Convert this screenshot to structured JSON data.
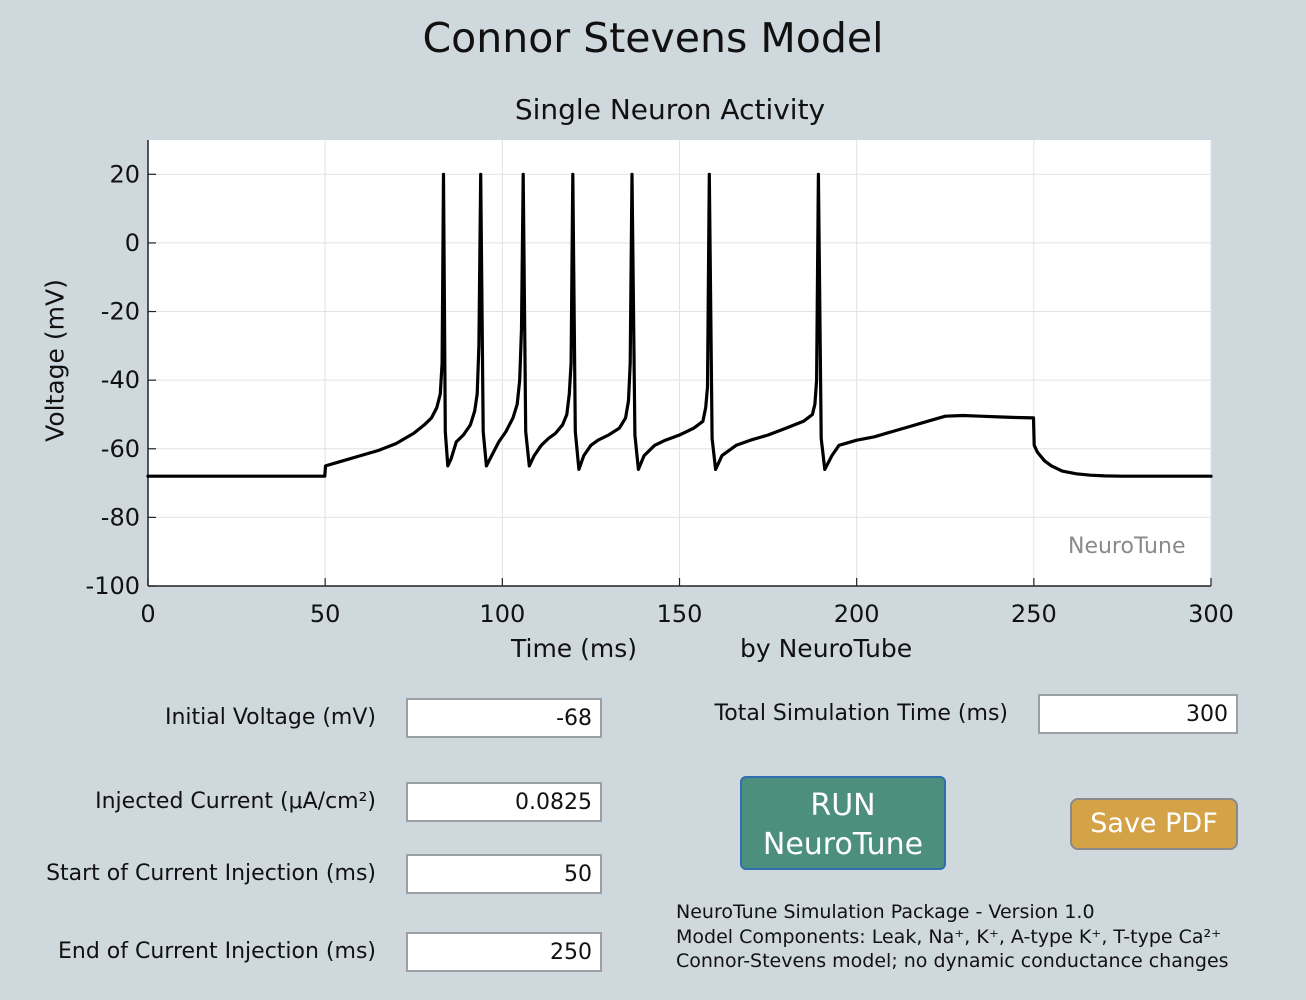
{
  "app": {
    "title": "Connor Stevens Model",
    "chart_title": "Single Neuron Activity",
    "watermark": "NeuroTune",
    "credit": "by NeuroTube"
  },
  "chart_data": {
    "type": "line",
    "title": "Single Neuron Activity",
    "xlabel": "Time (ms)",
    "ylabel": "Voltage (mV)",
    "xlim": [
      0,
      300
    ],
    "ylim": [
      -100,
      30
    ],
    "xticks": [
      0,
      50,
      100,
      150,
      200,
      250,
      300
    ],
    "yticks": [
      -100,
      -80,
      -60,
      -40,
      -20,
      0,
      20
    ],
    "grid": true,
    "line_color": "#000000",
    "series": [
      {
        "x": [
          0,
          49.9,
          50.1,
          55,
          60,
          65,
          70,
          75,
          78,
          80,
          81.5,
          82.5,
          83,
          83.4,
          83.9,
          84.6,
          85.5,
          87,
          89,
          91,
          92.2,
          92.9,
          93.4,
          93.9,
          94.6,
          95.5,
          97,
          99,
          101,
          103,
          104.2,
          104.9,
          105.4,
          105.9,
          106.6,
          107.6,
          109,
          111,
          113,
          115,
          117,
          118.2,
          118.9,
          119.4,
          119.9,
          120.6,
          121.6,
          123,
          125,
          127,
          130,
          133,
          134.8,
          135.6,
          136.1,
          136.6,
          137.4,
          138.4,
          140,
          143,
          146,
          150,
          154,
          156.6,
          157.4,
          157.9,
          158.4,
          159.2,
          160.2,
          162,
          166,
          170,
          175,
          180,
          185,
          187.5,
          188.2,
          188.7,
          189.2,
          190,
          191,
          193,
          195,
          200,
          205,
          210,
          215,
          220,
          225,
          230,
          235,
          240,
          245,
          249.9,
          250.1,
          251,
          253,
          255,
          258,
          262,
          266,
          270,
          275,
          280,
          290,
          300
        ],
        "y": [
          -68,
          -68,
          -65,
          -63.5,
          -62,
          -60.5,
          -58.5,
          -55.5,
          -53,
          -51,
          -48,
          -44,
          -35,
          20,
          -55,
          -65,
          -63,
          -58,
          -56,
          -53,
          -49,
          -44,
          -30,
          20,
          -55,
          -65,
          -62,
          -58,
          -55,
          -51,
          -47,
          -40,
          -25,
          20,
          -55,
          -65,
          -62,
          -59,
          -57,
          -55.5,
          -53,
          -50,
          -44,
          -35,
          20,
          -55,
          -66,
          -62,
          -59,
          -57.5,
          -56,
          -54,
          -51,
          -46,
          -35,
          20,
          -56,
          -66,
          -62,
          -59,
          -57.5,
          -56,
          -54,
          -52,
          -48,
          -42,
          20,
          -57,
          -66,
          -62,
          -59,
          -57.5,
          -56,
          -54,
          -52,
          -50,
          -47,
          -40,
          20,
          -57,
          -66,
          -62,
          -59,
          -57.5,
          -56.5,
          -55,
          -53.5,
          -52,
          -50.5,
          -50.3,
          -50.5,
          -50.7,
          -50.9,
          -51,
          -59,
          -61,
          -63.5,
          -65,
          -66.5,
          -67.3,
          -67.7,
          -67.9,
          -68,
          -68,
          -68,
          -68
        ]
      }
    ]
  },
  "form": {
    "initial_voltage": {
      "label": "Initial Voltage (mV)",
      "value": "-68"
    },
    "injected_current": {
      "label": "Injected Current (μA/cm²)",
      "value": "0.0825"
    },
    "start_injection": {
      "label": "Start of Current Injection (ms)",
      "value": "50"
    },
    "end_injection": {
      "label": "End of Current Injection (ms)",
      "value": "250"
    },
    "total_time": {
      "label": "Total Simulation Time (ms)",
      "value": "300"
    }
  },
  "buttons": {
    "run_line1": "RUN",
    "run_line2": "NeuroTune",
    "save_pdf": "Save PDF"
  },
  "colors": {
    "background": "#cfd8dd",
    "run_button": "#4b8f7c",
    "save_button": "#d4a347"
  },
  "info": {
    "line1": "NeuroTune Simulation Package - Version 1.0",
    "line2": "Model Components: Leak, Na⁺, K⁺, A-type K⁺, T-type Ca²⁺",
    "line3": "Connor-Stevens model; no dynamic conductance changes"
  }
}
